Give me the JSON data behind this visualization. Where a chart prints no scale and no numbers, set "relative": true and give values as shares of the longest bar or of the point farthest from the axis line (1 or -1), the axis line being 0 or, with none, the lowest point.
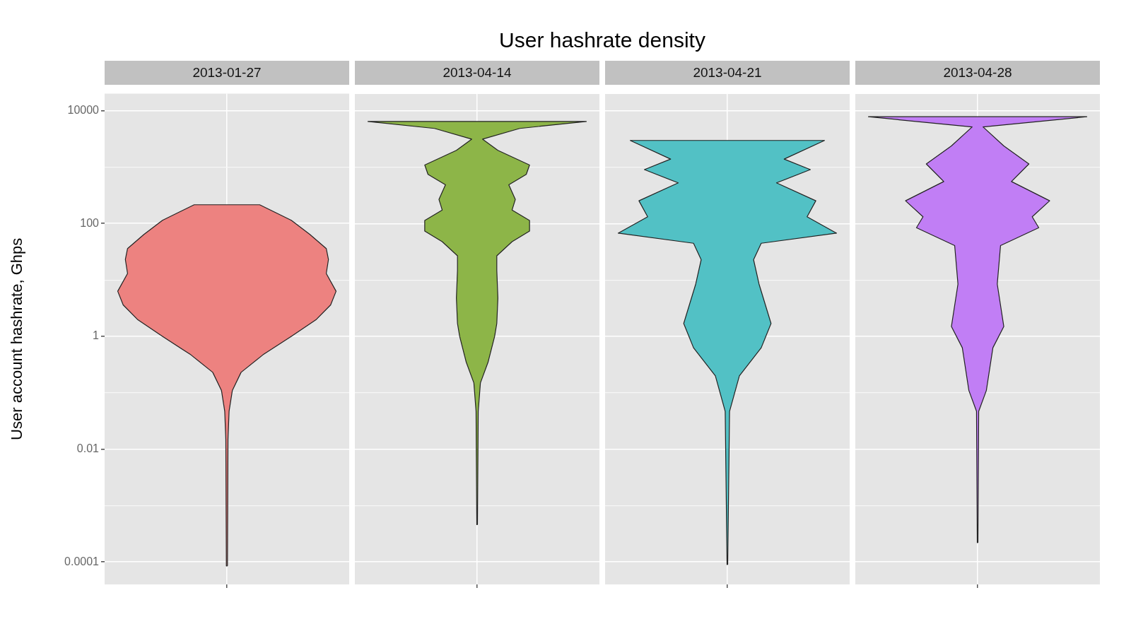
{
  "chart_data": [
    {
      "type": "area",
      "subtitle": "2013-01-27",
      "ylabel": "User account hashrate, Ghps",
      "orientation": "horizontal",
      "relative": true,
      "log": "y",
      "grid": true,
      "tick_labels": "y",
      "color": "#ed8280",
      "ylim": [
        4e-05,
        20000
      ],
      "yticks": [
        0.0001,
        {
          "value": 0.001,
          "label": null
        },
        0.01,
        {
          "value": 0.1,
          "label": null
        },
        1,
        {
          "value": 10,
          "label": null
        },
        100,
        {
          "value": 1000,
          "label": null
        },
        10000
      ],
      "x": [
        8.5e-05,
        0.015,
        0.047,
        0.11,
        0.23,
        0.47,
        1,
        2,
        3.6,
        6.3,
        13,
        23,
        36,
        64,
        114,
        215
      ],
      "values": [
        0.005,
        0.01,
        0.02,
        0.05,
        0.13,
        0.33,
        0.59,
        0.82,
        0.95,
        1,
        0.91,
        0.93,
        0.91,
        0.76,
        0.59,
        0.3
      ]
    },
    {
      "type": "area",
      "subtitle": "2013-04-14",
      "orientation": "horizontal",
      "relative": true,
      "log": "y",
      "grid": true,
      "tick_labels": false,
      "color": "#8db548",
      "ylim": [
        4e-05,
        20000
      ],
      "yticks": [
        0.0001,
        {
          "value": 0.001,
          "label": null
        },
        0.01,
        {
          "value": 0.1,
          "label": null
        },
        1,
        {
          "value": 10,
          "label": null
        },
        100,
        {
          "value": 1000,
          "label": null
        },
        10000
      ],
      "x": [
        0.00046,
        0.047,
        0.15,
        0.35,
        1,
        1.7,
        4.8,
        15,
        27,
        48,
        74,
        114,
        175,
        270,
        490,
        750,
        1100,
        2000,
        3160,
        4900,
        6500
      ],
      "values": [
        0.003,
        0.01,
        0.03,
        0.1,
        0.16,
        0.18,
        0.19,
        0.18,
        0.18,
        0.32,
        0.48,
        0.48,
        0.32,
        0.35,
        0.29,
        0.45,
        0.48,
        0.19,
        0.05,
        0.39,
        1
      ]
    },
    {
      "type": "area",
      "title": "User hashrate density",
      "subtitle": "2013-04-21",
      "orientation": "horizontal",
      "relative": true,
      "log": "y",
      "grid": true,
      "tick_labels": false,
      "color": "#52c1c5",
      "ylim": [
        4e-05,
        20000
      ],
      "yticks": [
        0.0001,
        {
          "value": 0.001,
          "label": null
        },
        0.01,
        {
          "value": 0.1,
          "label": null
        },
        1,
        {
          "value": 10,
          "label": null
        },
        100,
        {
          "value": 1000,
          "label": null
        },
        10000
      ],
      "x": [
        9e-05,
        0.047,
        0.2,
        0.63,
        1.7,
        8.5,
        23,
        45,
        68,
        133,
        255,
        530,
        910,
        1400,
        3000
      ],
      "values": [
        0.003,
        0.02,
        0.11,
        0.31,
        0.4,
        0.29,
        0.24,
        0.31,
        1,
        0.73,
        0.81,
        0.45,
        0.76,
        0.52,
        0.89
      ]
    },
    {
      "type": "area",
      "subtitle": "2013-04-28",
      "orientation": "horizontal",
      "relative": true,
      "log": "y",
      "grid": true,
      "tick_labels": false,
      "color": "#c17ef5",
      "ylim": [
        4e-05,
        20000
      ],
      "yticks": [
        0.0001,
        {
          "value": 0.001,
          "label": null
        },
        0.01,
        {
          "value": 0.1,
          "label": null
        },
        1,
        {
          "value": 10,
          "label": null
        },
        100,
        {
          "value": 1000,
          "label": null
        },
        10000
      ],
      "x": [
        0.00022,
        0.047,
        0.11,
        0.63,
        1.5,
        8.5,
        41,
        85,
        133,
        255,
        560,
        1150,
        2400,
        5200,
        7900
      ],
      "values": [
        0.003,
        0.01,
        0.08,
        0.14,
        0.24,
        0.18,
        0.21,
        0.56,
        0.5,
        0.66,
        0.31,
        0.47,
        0.24,
        0.05,
        1
      ]
    }
  ]
}
